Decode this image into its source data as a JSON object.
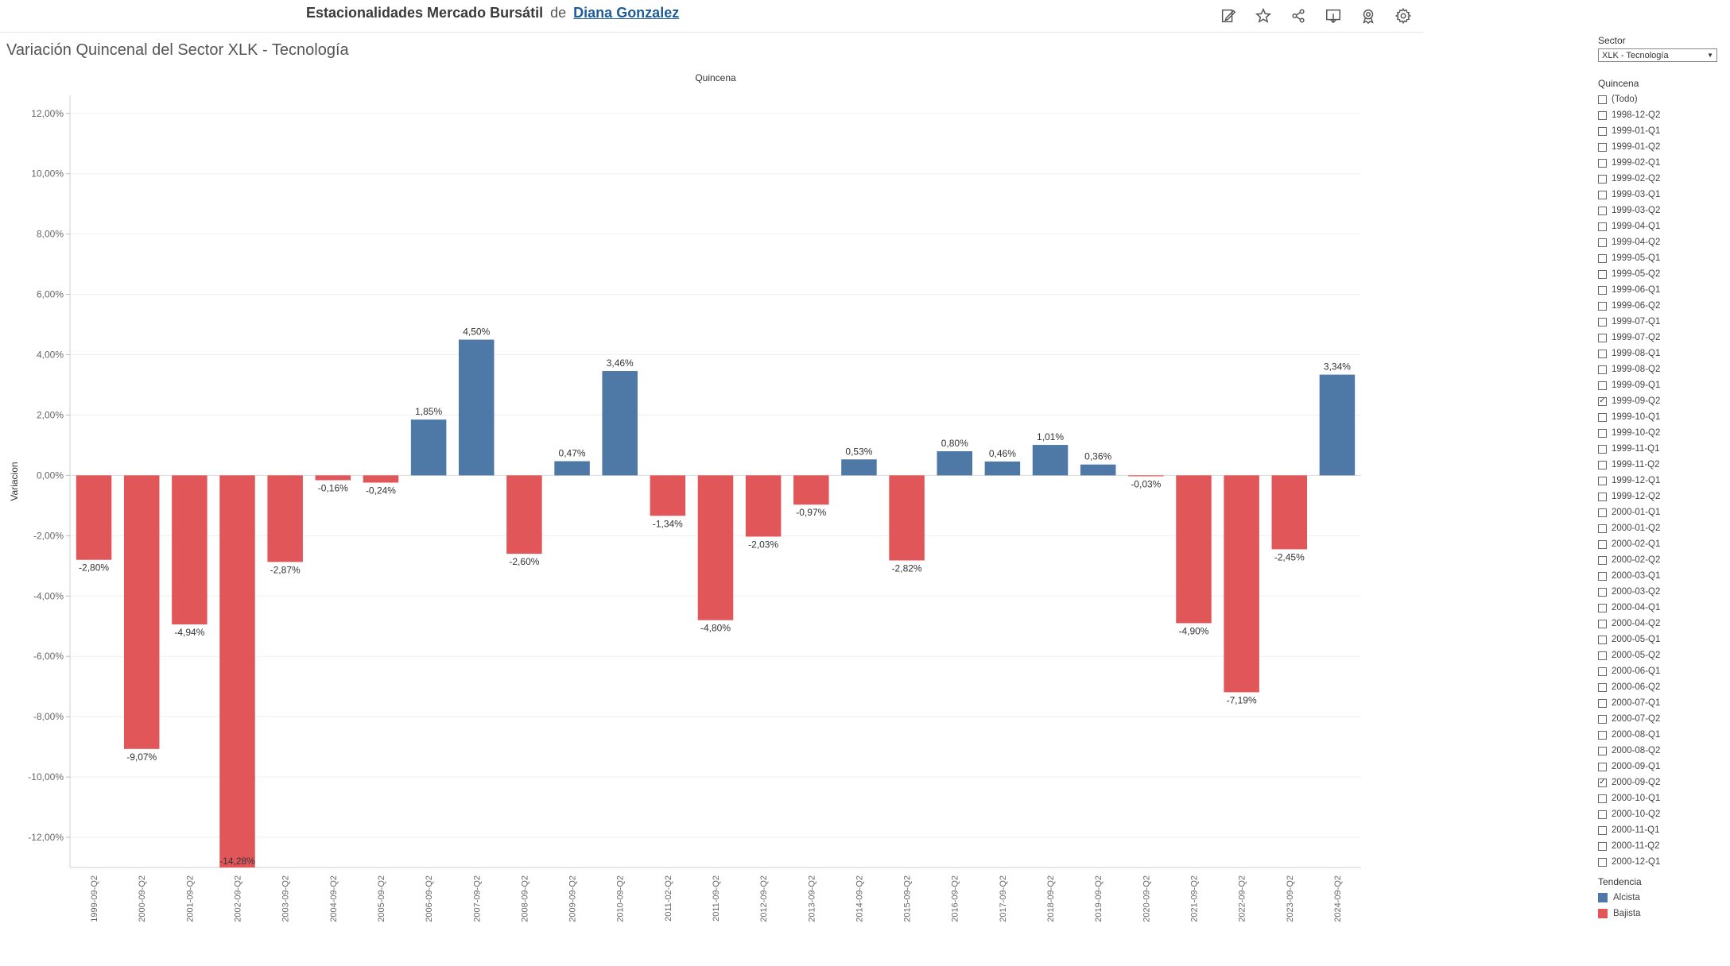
{
  "header": {
    "title": "Estacionalidades Mercado Bursátil",
    "by": "de",
    "author": "Diana Gonzalez"
  },
  "toolbar": {
    "icons": [
      "edit-icon",
      "star-icon",
      "share-icon",
      "download-icon",
      "badge-icon",
      "settings-icon"
    ]
  },
  "sheet": {
    "title": "Variación Quincenal del Sector XLK - Tecnología"
  },
  "chart_data": {
    "type": "bar",
    "xlabel": "Quincena",
    "ylabel": "Variacion",
    "ylim": [
      -13,
      12.6
    ],
    "yticks": [
      12,
      10,
      8,
      6,
      4,
      2,
      0,
      -2,
      -4,
      -6,
      -8,
      -10,
      -12
    ],
    "ytick_labels": [
      "12,00%",
      "10,00%",
      "8,00%",
      "6,00%",
      "4,00%",
      "2,00%",
      "0,00%",
      "-2,00%",
      "-4,00%",
      "-6,00%",
      "-8,00%",
      "-10,00%",
      "-12,00%"
    ],
    "grid": true,
    "categories": [
      "1999-09-Q2",
      "2000-09-Q2",
      "2001-09-Q2",
      "2002-09-Q2",
      "2003-09-Q2",
      "2004-09-Q2",
      "2005-09-Q2",
      "2006-09-Q2",
      "2007-09-Q2",
      "2008-09-Q2",
      "2009-09-Q2",
      "2010-09-Q2",
      "2011-02-Q2",
      "2011-09-Q2",
      "2012-09-Q2",
      "2013-09-Q2",
      "2014-09-Q2",
      "2015-09-Q2",
      "2016-09-Q2",
      "2017-09-Q2",
      "2018-09-Q2",
      "2019-09-Q2",
      "2020-09-Q2",
      "2021-09-Q2",
      "2022-09-Q2",
      "2023-09-Q2",
      "2024-09-Q2"
    ],
    "values": [
      -2.8,
      -9.07,
      -4.94,
      -14.28,
      -2.87,
      -0.16,
      -0.24,
      1.85,
      4.5,
      -2.6,
      0.47,
      3.46,
      -1.34,
      -4.8,
      -2.03,
      -0.97,
      0.53,
      -2.82,
      0.8,
      0.46,
      1.01,
      0.36,
      -0.03,
      -4.9,
      -7.19,
      -2.45,
      3.34
    ],
    "labels": [
      "-2,80%",
      "-9,07%",
      "-4,94%",
      "-14,28%",
      "-2,87%",
      "-0,16%",
      "-0,24%",
      "1,85%",
      "4,50%",
      "-2,60%",
      "0,47%",
      "3,46%",
      "-1,34%",
      "-4,80%",
      "-2,03%",
      "-0,97%",
      "0,53%",
      "-2,82%",
      "0,80%",
      "0,46%",
      "1,01%",
      "0,36%",
      "-0,03%",
      "-4,90%",
      "-7,19%",
      "-2,45%",
      "3,34%"
    ],
    "colors": {
      "Alcista": "#4e79a7",
      "Bajista": "#e15759"
    }
  },
  "filters": {
    "sector": {
      "title": "Sector",
      "value": "XLK - Tecnología"
    },
    "quincena": {
      "title": "Quincena",
      "items": [
        {
          "label": "(Todo)",
          "checked": false
        },
        {
          "label": "1998-12-Q2",
          "checked": false
        },
        {
          "label": "1999-01-Q1",
          "checked": false
        },
        {
          "label": "1999-01-Q2",
          "checked": false
        },
        {
          "label": "1999-02-Q1",
          "checked": false
        },
        {
          "label": "1999-02-Q2",
          "checked": false
        },
        {
          "label": "1999-03-Q1",
          "checked": false
        },
        {
          "label": "1999-03-Q2",
          "checked": false
        },
        {
          "label": "1999-04-Q1",
          "checked": false
        },
        {
          "label": "1999-04-Q2",
          "checked": false
        },
        {
          "label": "1999-05-Q1",
          "checked": false
        },
        {
          "label": "1999-05-Q2",
          "checked": false
        },
        {
          "label": "1999-06-Q1",
          "checked": false
        },
        {
          "label": "1999-06-Q2",
          "checked": false
        },
        {
          "label": "1999-07-Q1",
          "checked": false
        },
        {
          "label": "1999-07-Q2",
          "checked": false
        },
        {
          "label": "1999-08-Q1",
          "checked": false
        },
        {
          "label": "1999-08-Q2",
          "checked": false
        },
        {
          "label": "1999-09-Q1",
          "checked": false
        },
        {
          "label": "1999-09-Q2",
          "checked": true
        },
        {
          "label": "1999-10-Q1",
          "checked": false
        },
        {
          "label": "1999-10-Q2",
          "checked": false
        },
        {
          "label": "1999-11-Q1",
          "checked": false
        },
        {
          "label": "1999-11-Q2",
          "checked": false
        },
        {
          "label": "1999-12-Q1",
          "checked": false
        },
        {
          "label": "1999-12-Q2",
          "checked": false
        },
        {
          "label": "2000-01-Q1",
          "checked": false
        },
        {
          "label": "2000-01-Q2",
          "checked": false
        },
        {
          "label": "2000-02-Q1",
          "checked": false
        },
        {
          "label": "2000-02-Q2",
          "checked": false
        },
        {
          "label": "2000-03-Q1",
          "checked": false
        },
        {
          "label": "2000-03-Q2",
          "checked": false
        },
        {
          "label": "2000-04-Q1",
          "checked": false
        },
        {
          "label": "2000-04-Q2",
          "checked": false
        },
        {
          "label": "2000-05-Q1",
          "checked": false
        },
        {
          "label": "2000-05-Q2",
          "checked": false
        },
        {
          "label": "2000-06-Q1",
          "checked": false
        },
        {
          "label": "2000-06-Q2",
          "checked": false
        },
        {
          "label": "2000-07-Q1",
          "checked": false
        },
        {
          "label": "2000-07-Q2",
          "checked": false
        },
        {
          "label": "2000-08-Q1",
          "checked": false
        },
        {
          "label": "2000-08-Q2",
          "checked": false
        },
        {
          "label": "2000-09-Q1",
          "checked": false
        },
        {
          "label": "2000-09-Q2",
          "checked": true
        },
        {
          "label": "2000-10-Q1",
          "checked": false
        },
        {
          "label": "2000-10-Q2",
          "checked": false
        },
        {
          "label": "2000-11-Q1",
          "checked": false
        },
        {
          "label": "2000-11-Q2",
          "checked": false
        },
        {
          "label": "2000-12-Q1",
          "checked": false
        }
      ]
    }
  },
  "legend": {
    "title": "Tendencia",
    "items": [
      {
        "label": "Alcista",
        "color": "#4e79a7"
      },
      {
        "label": "Bajista",
        "color": "#e15759"
      }
    ]
  }
}
